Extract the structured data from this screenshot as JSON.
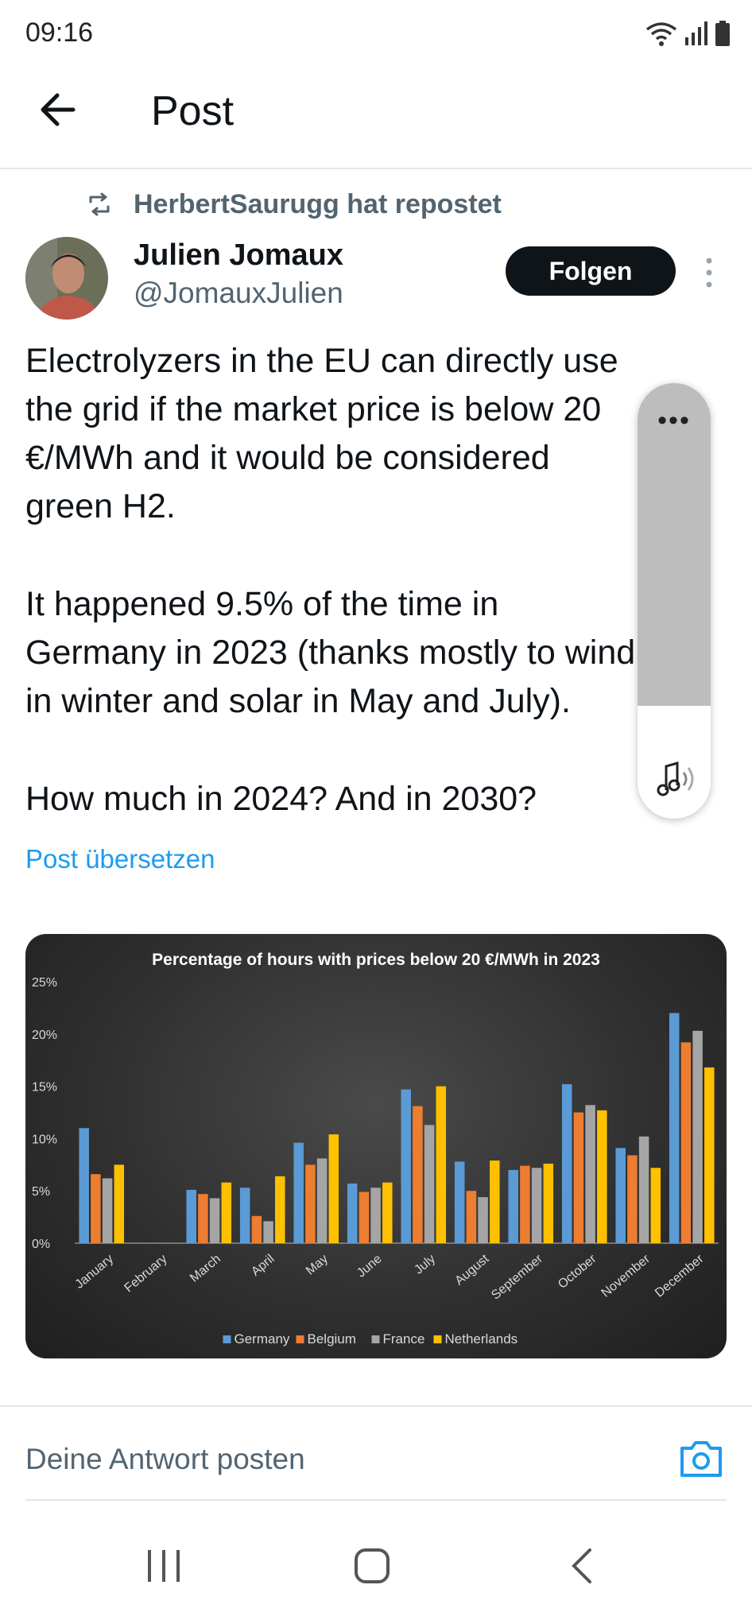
{
  "status_bar": {
    "time": "09:16"
  },
  "header": {
    "title": "Post"
  },
  "repost": {
    "text": "HerbertSaurugg hat repostet"
  },
  "author": {
    "name": "Julien Jomaux",
    "handle": "@JomauxJulien"
  },
  "follow_label": "Folgen",
  "tweet": {
    "lines": [
      "Electrolyzers in the EU can directly use",
      "the grid if the market price is below 20",
      "€/MWh and it would be considered",
      "green H2.",
      "",
      "It happened 9.5% of the time in",
      "Germany in 2023 (thanks mostly to wind",
      "in winter and solar in May and July).",
      "",
      "How much in 2024? And in 2030?"
    ]
  },
  "translate_label": "Post übersetzen",
  "overlay": {
    "dots": "•••"
  },
  "reply": {
    "placeholder": "Deine Antwort posten"
  },
  "icons": [
    "back-arrow-icon",
    "repost-icon",
    "more-vertical-icon",
    "camera-icon",
    "wifi-icon",
    "signal-icon",
    "battery-icon",
    "sound-icon",
    "recents-icon",
    "home-icon",
    "nav-back-icon"
  ],
  "colors": {
    "follow_bg": "#0f1419",
    "link": "#1d9bf0",
    "germany": "#5b9bd5",
    "belgium": "#ed7d31",
    "france": "#a5a5a5",
    "netherlands": "#ffc000"
  },
  "chart_data": {
    "type": "bar",
    "title": "Percentage of hours with prices below 20 €/MWh in 2023",
    "categories": [
      "January",
      "February",
      "March",
      "April",
      "May",
      "June",
      "July",
      "August",
      "September",
      "October",
      "November",
      "December"
    ],
    "series": [
      {
        "name": "Germany",
        "values": [
          11.0,
          0,
          5.1,
          5.3,
          9.6,
          5.7,
          14.7,
          7.8,
          7.0,
          15.2,
          9.1,
          22.0
        ]
      },
      {
        "name": "Belgium",
        "values": [
          6.6,
          0,
          4.7,
          2.6,
          7.5,
          4.9,
          13.1,
          5.0,
          7.4,
          12.5,
          8.4,
          19.2
        ]
      },
      {
        "name": "France",
        "values": [
          6.2,
          0,
          4.3,
          2.1,
          8.1,
          5.3,
          11.3,
          4.4,
          7.2,
          13.2,
          10.2,
          20.3
        ]
      },
      {
        "name": "Netherlands",
        "values": [
          7.5,
          0,
          5.8,
          6.4,
          10.4,
          5.8,
          15.0,
          7.9,
          7.6,
          12.7,
          7.2,
          16.8
        ]
      }
    ],
    "ylim": [
      0,
      25
    ],
    "yticks": [
      "0%",
      "5%",
      "10%",
      "15%",
      "20%",
      "25%"
    ],
    "ytick_values": [
      0,
      5,
      10,
      15,
      20,
      25
    ],
    "legend": "bottom",
    "grid": false
  }
}
